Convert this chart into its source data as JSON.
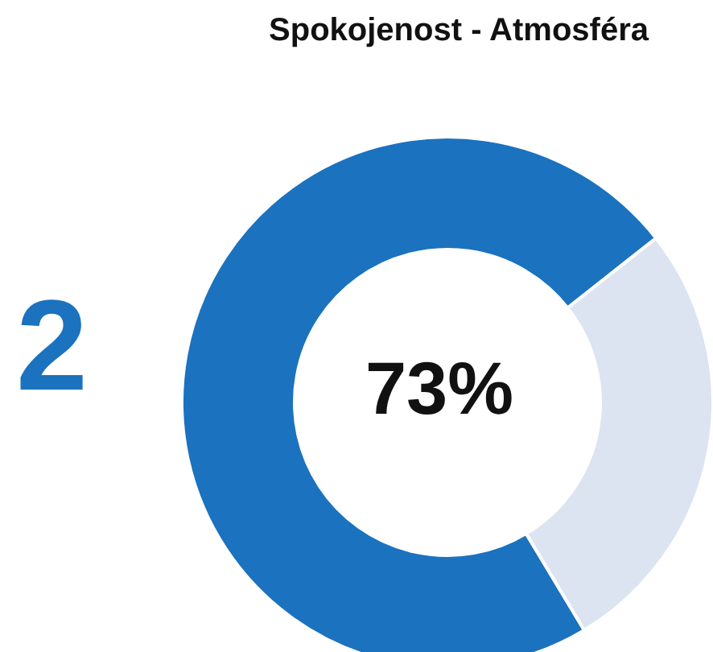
{
  "chart_data": {
    "type": "donut",
    "title": "Spokojenost - Atmosféra",
    "categories": [
      null,
      null
    ],
    "values": [
      73,
      27
    ],
    "colors": [
      "#1b72be",
      "#dce4f2"
    ],
    "annotations": [
      "2",
      "73%"
    ]
  }
}
